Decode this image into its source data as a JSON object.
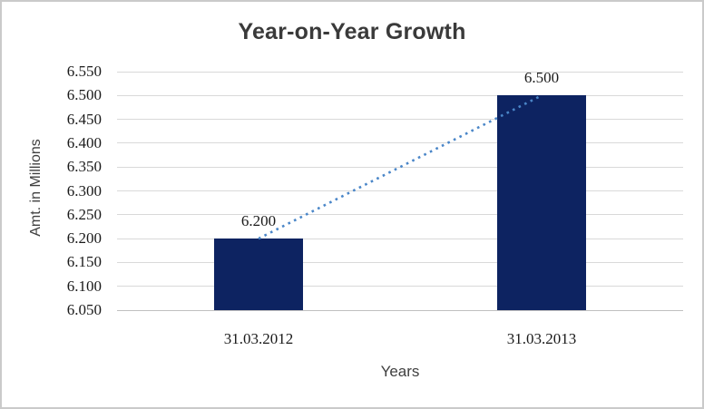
{
  "window": {
    "background": "#ffffff",
    "border_color": "#cacaca"
  },
  "chart_data": {
    "type": "bar",
    "title": "Year-on-Year Growth",
    "xlabel": "Years",
    "ylabel": "Amt. in Millions",
    "categories": [
      "31.03.2012",
      "31.03.2013"
    ],
    "values": [
      6.2,
      6.5
    ],
    "value_labels": [
      "6.200",
      "6.500"
    ],
    "ylim": [
      6.05,
      6.55
    ],
    "ytick_values": [
      6.55,
      6.5,
      6.45,
      6.4,
      6.35,
      6.3,
      6.25,
      6.2,
      6.15,
      6.1,
      6.05
    ],
    "ytick_labels": [
      "6.550",
      "6.500",
      "6.450",
      "6.400",
      "6.350",
      "6.300",
      "6.250",
      "6.200",
      "6.150",
      "6.100",
      "6.050"
    ],
    "grid": true,
    "legend": "none",
    "bar_color": "#0d2361",
    "gridline_color": "#d9d9d9",
    "axis_line_color": "#c0c0c0",
    "title_color": "#3a3a3a",
    "text_color": "#1a1a1a",
    "trendline": {
      "style": "dotted",
      "color": "#4a86c8",
      "from_value": 6.2,
      "to_value": 6.5
    }
  }
}
